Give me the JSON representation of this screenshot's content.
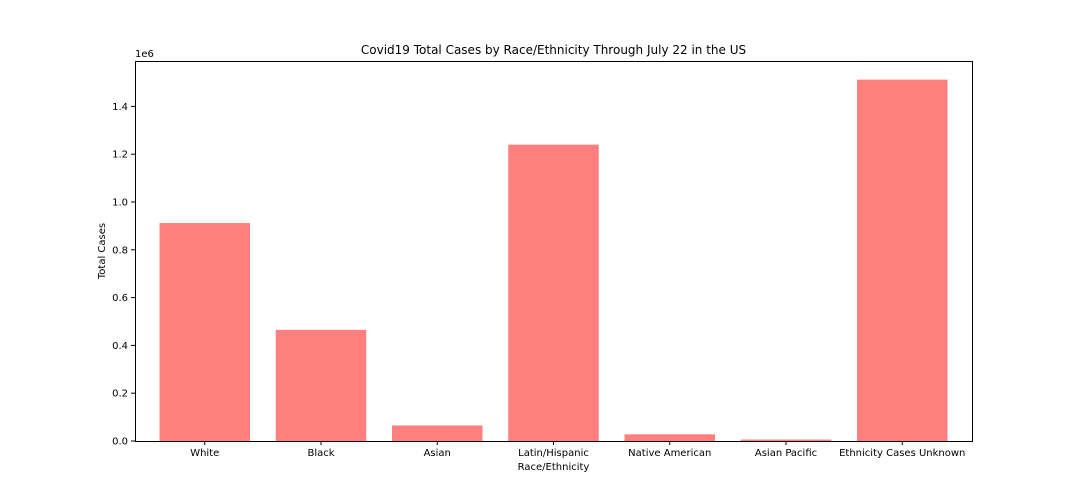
{
  "chart_data": {
    "type": "bar",
    "title": "Covid19 Total Cases by Race/Ethnicity Through July 22 in the US",
    "xlabel": "Race/Ethnicity",
    "ylabel": "Total Cases",
    "y_offset_label": "1e6",
    "categories": [
      "White",
      "Black",
      "Asian",
      "Latin/Hispanic",
      "Native American",
      "Asian Pacific",
      "Ethnicity Cases Unknown"
    ],
    "values": [
      912000,
      465000,
      65000,
      1240000,
      28000,
      6000,
      1512000
    ],
    "y_ticks": [
      0.0,
      0.2,
      0.4,
      0.6,
      0.8,
      1.0,
      1.2,
      1.4
    ],
    "y_tick_scale": 1000000,
    "ylim": [
      0,
      1590000
    ],
    "bar_color": "#ff7f7f",
    "grid": false
  }
}
